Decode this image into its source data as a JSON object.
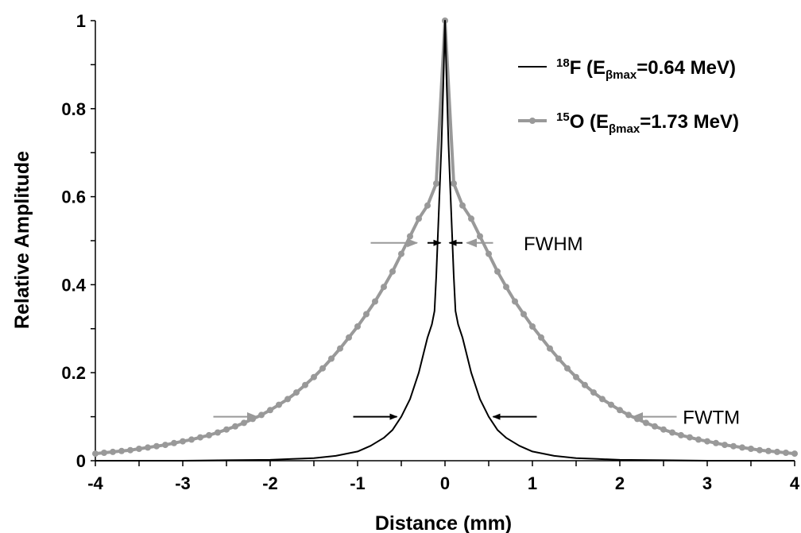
{
  "chart_data": {
    "type": "line",
    "xlabel": "Distance (mm)",
    "ylabel": "Relative Amplitude",
    "xlim": [
      -4,
      4
    ],
    "ylim": [
      0,
      1
    ],
    "x_ticks": [
      "-4",
      "-3",
      "-2",
      "-1",
      "0",
      "1",
      "2",
      "3",
      "4"
    ],
    "y_ticks": [
      "0",
      "0.2",
      "0.4",
      "0.6",
      "0.8",
      "1"
    ],
    "grid": false,
    "legend_position": "top-right",
    "series": [
      {
        "name": "F-18",
        "legend": {
          "main": "F (E",
          "sup": "18",
          "sub": "βmax",
          "tail": "=0.64 MeV)"
        },
        "color": "#000000",
        "markers": false,
        "x": [
          -4,
          -3.5,
          -3,
          -2.5,
          -2,
          -1.75,
          -1.5,
          -1.25,
          -1,
          -0.85,
          -0.7,
          -0.6,
          -0.5,
          -0.4,
          -0.3,
          -0.25,
          -0.2,
          -0.15,
          -0.12,
          -0.1,
          -0.08,
          -0.06,
          -0.04,
          -0.02,
          0,
          0.02,
          0.04,
          0.06,
          0.08,
          0.1,
          0.12,
          0.15,
          0.2,
          0.25,
          0.3,
          0.4,
          0.5,
          0.6,
          0.7,
          0.85,
          1,
          1.25,
          1.5,
          1.75,
          2,
          2.5,
          3,
          3.5,
          4
        ],
        "y": [
          0,
          0,
          0,
          0.001,
          0.002,
          0.004,
          0.006,
          0.011,
          0.021,
          0.034,
          0.052,
          0.07,
          0.1,
          0.14,
          0.2,
          0.24,
          0.28,
          0.31,
          0.34,
          0.42,
          0.52,
          0.62,
          0.72,
          0.85,
          1,
          0.85,
          0.72,
          0.62,
          0.52,
          0.42,
          0.34,
          0.31,
          0.28,
          0.24,
          0.2,
          0.14,
          0.1,
          0.07,
          0.052,
          0.034,
          0.021,
          0.011,
          0.006,
          0.004,
          0.002,
          0.001,
          0,
          0,
          0
        ]
      },
      {
        "name": "O-15",
        "legend": {
          "main": "O (E",
          "sup": "15",
          "sub": "βmax",
          "tail": "=1.73 MeV)"
        },
        "color": "#999999",
        "markers": true,
        "x": [
          -4,
          -3.9,
          -3.8,
          -3.7,
          -3.6,
          -3.5,
          -3.4,
          -3.3,
          -3.2,
          -3.1,
          -3,
          -2.9,
          -2.8,
          -2.7,
          -2.6,
          -2.5,
          -2.4,
          -2.3,
          -2.2,
          -2.1,
          -2,
          -1.9,
          -1.8,
          -1.7,
          -1.6,
          -1.5,
          -1.4,
          -1.3,
          -1.2,
          -1.1,
          -1,
          -0.9,
          -0.8,
          -0.7,
          -0.6,
          -0.5,
          -0.4,
          -0.3,
          -0.2,
          -0.1,
          0,
          0.1,
          0.2,
          0.3,
          0.4,
          0.5,
          0.6,
          0.7,
          0.8,
          0.9,
          1,
          1.1,
          1.2,
          1.3,
          1.4,
          1.5,
          1.6,
          1.7,
          1.8,
          1.9,
          2,
          2.1,
          2.2,
          2.3,
          2.4,
          2.5,
          2.6,
          2.7,
          2.8,
          2.9,
          3,
          3.1,
          3.2,
          3.3,
          3.4,
          3.5,
          3.6,
          3.7,
          3.8,
          3.9,
          4
        ],
        "y": [
          0.016,
          0.018,
          0.02,
          0.022,
          0.024,
          0.027,
          0.03,
          0.033,
          0.036,
          0.04,
          0.044,
          0.048,
          0.053,
          0.058,
          0.064,
          0.071,
          0.078,
          0.086,
          0.095,
          0.104,
          0.115,
          0.127,
          0.14,
          0.155,
          0.172,
          0.19,
          0.21,
          0.232,
          0.255,
          0.28,
          0.305,
          0.333,
          0.362,
          0.395,
          0.43,
          0.47,
          0.51,
          0.55,
          0.58,
          0.63,
          1,
          0.63,
          0.58,
          0.55,
          0.51,
          0.47,
          0.43,
          0.395,
          0.362,
          0.333,
          0.305,
          0.28,
          0.255,
          0.232,
          0.21,
          0.19,
          0.172,
          0.155,
          0.14,
          0.127,
          0.115,
          0.104,
          0.095,
          0.086,
          0.078,
          0.071,
          0.064,
          0.058,
          0.053,
          0.048,
          0.044,
          0.04,
          0.036,
          0.033,
          0.03,
          0.027,
          0.024,
          0.022,
          0.02,
          0.018,
          0.016
        ]
      }
    ],
    "annotations": [
      {
        "text": "FWHM",
        "text_x": 0.9,
        "text_y": 0.495,
        "arrows": [
          {
            "from_x": -0.85,
            "to_x": -0.32,
            "y": 0.495,
            "color": "#999999"
          },
          {
            "from_x": -0.2,
            "to_x": -0.05,
            "y": 0.495,
            "color": "#000000"
          },
          {
            "from_x": 0.2,
            "to_x": 0.05,
            "y": 0.495,
            "color": "#000000"
          },
          {
            "from_x": 0.55,
            "to_x": 0.25,
            "y": 0.495,
            "color": "#999999"
          }
        ]
      },
      {
        "text": "FWTM",
        "text_x": 2.72,
        "text_y": 0.1,
        "arrows": [
          {
            "from_x": -2.65,
            "to_x": -2.15,
            "y": 0.1,
            "color": "#999999"
          },
          {
            "from_x": -1.05,
            "to_x": -0.55,
            "y": 0.1,
            "color": "#000000"
          },
          {
            "from_x": 1.05,
            "to_x": 0.55,
            "y": 0.1,
            "color": "#000000"
          },
          {
            "from_x": 2.65,
            "to_x": 2.15,
            "y": 0.1,
            "color": "#999999"
          }
        ]
      }
    ]
  }
}
